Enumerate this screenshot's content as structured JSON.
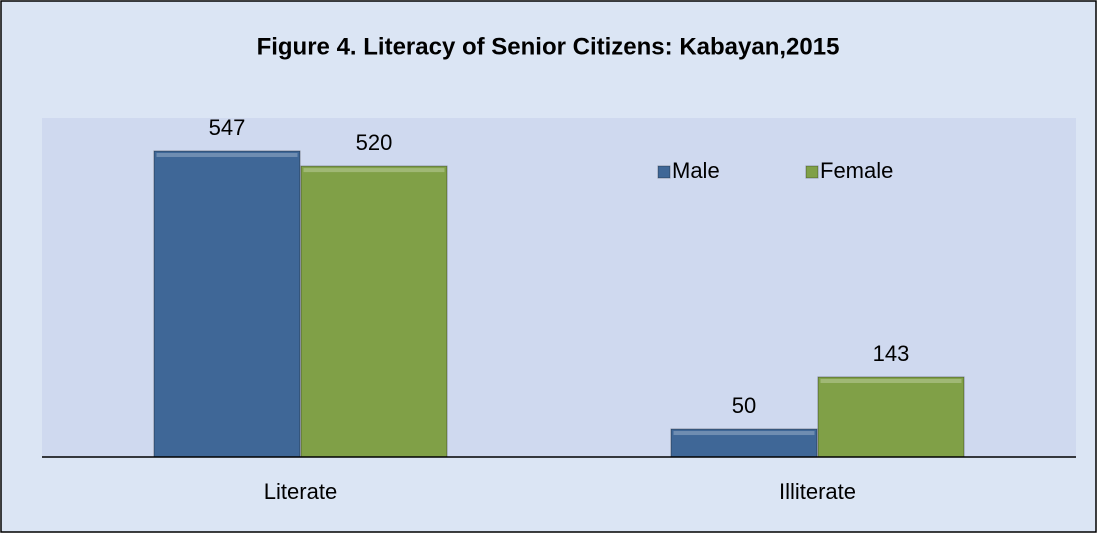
{
  "chart_data": {
    "type": "bar",
    "title": "Figure 4. Literacy of Senior Citizens: Kabayan,2015",
    "categories": [
      "Literate",
      "Illiterate"
    ],
    "series": [
      {
        "name": "Male",
        "color": "#3f6797",
        "values": [
          547,
          50
        ]
      },
      {
        "name": "Female",
        "color": "#80a047",
        "values": [
          520,
          143
        ]
      }
    ],
    "legend": "top-right"
  }
}
